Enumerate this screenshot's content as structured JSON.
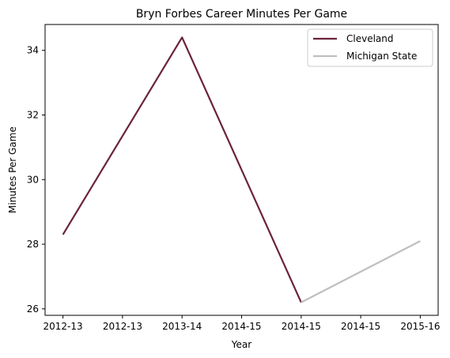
{
  "chart_data": {
    "type": "line",
    "title": "Bryn Forbes Career Minutes Per Game",
    "xlabel": "Year",
    "ylabel": "Minutes Per Game",
    "categories": [
      "2012-13",
      "2012-13",
      "2013-14",
      "2014-15",
      "2014-15",
      "2014-15",
      "2015-16"
    ],
    "x_ticks": [
      0,
      1,
      2,
      3,
      4,
      5,
      6
    ],
    "ylim": [
      25.8,
      34.8
    ],
    "y_ticks": [
      26,
      28,
      30,
      32,
      34
    ],
    "grid": false,
    "legend_position": "top-right",
    "series": [
      {
        "name": "Cleveland",
        "color": "#6a2439",
        "points": [
          [
            0,
            28.3
          ],
          [
            2,
            34.4
          ],
          [
            4,
            26.2
          ]
        ]
      },
      {
        "name": "Michigan State",
        "color": "#bfbfbf",
        "points": [
          [
            4,
            26.2
          ],
          [
            6,
            28.1
          ]
        ]
      }
    ]
  }
}
